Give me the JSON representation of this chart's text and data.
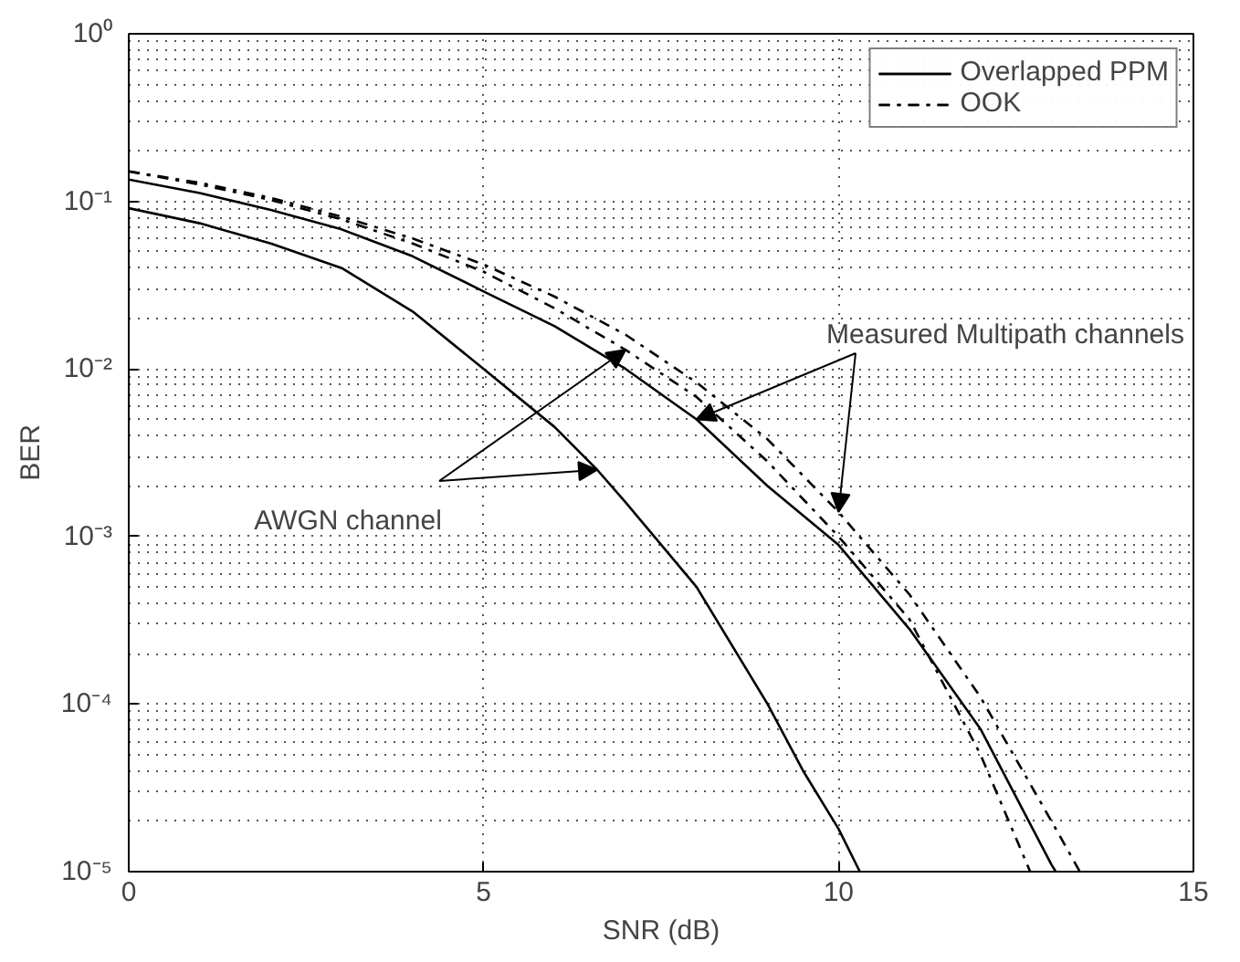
{
  "chart_data": {
    "type": "line",
    "xlabel": "SNR (dB)",
    "ylabel": "BER",
    "log": "y",
    "xlim": [
      0,
      15
    ],
    "xticks": [
      0,
      5,
      10,
      15
    ],
    "ylim": [
      1e-05,
      1
    ],
    "yticks": [
      {
        "value": 1e-05,
        "label": "10⁻⁵"
      },
      {
        "value": 0.0001,
        "label": "10⁻⁴"
      },
      {
        "value": 0.001,
        "label": "10⁻³"
      },
      {
        "value": 0.01,
        "label": "10⁻²"
      },
      {
        "value": 0.1,
        "label": "10⁻¹"
      },
      {
        "value": 1,
        "label": "10⁰"
      }
    ],
    "grid": true,
    "legend": "top right",
    "series": [
      {
        "name": "Overlapped PPM",
        "color": "#000000",
        "line_style": "solid",
        "x": [
          0,
          1,
          2,
          3,
          4,
          5,
          6,
          7,
          8,
          9,
          10,
          11,
          12,
          13,
          13.06
        ],
        "values": [
          0.135,
          0.112,
          0.089,
          0.068,
          0.047,
          0.029,
          0.018,
          0.01,
          0.005,
          0.002,
          0.00089,
          0.00028,
          7.1e-05,
          1.1e-05,
          1e-05
        ]
      },
      {
        "name": "OOK",
        "color": "#000000",
        "line_style": "dashdot",
        "x": [
          0,
          1,
          2,
          3,
          4,
          5,
          6,
          7,
          8,
          9,
          10,
          11,
          12,
          12.7
        ],
        "values": [
          0.151,
          0.126,
          0.102,
          0.078,
          0.056,
          0.038,
          0.023,
          0.013,
          0.0068,
          0.0028,
          0.001,
          0.00032,
          5e-05,
          1e-05
        ]
      },
      {
        "color": "#000000",
        "line_style": "solid",
        "x": [
          0,
          1,
          2,
          3,
          4,
          5,
          6,
          6.6,
          7,
          8,
          9,
          9.5,
          10,
          10.3
        ],
        "values": [
          0.091,
          0.074,
          0.056,
          0.04,
          0.022,
          0.01,
          0.0045,
          0.0025,
          0.0016,
          0.0005,
          0.0001,
          4e-05,
          1.8e-05,
          1e-05
        ]
      },
      {
        "color": "#000000",
        "line_style": "dashdot",
        "x": [
          0,
          1,
          2,
          3,
          4,
          5,
          6,
          7,
          8,
          9,
          10,
          11,
          12,
          13,
          13.4
        ],
        "values": [
          0.151,
          0.129,
          0.105,
          0.081,
          0.06,
          0.042,
          0.027,
          0.016,
          0.0083,
          0.0038,
          0.0014,
          0.00045,
          0.00011,
          2e-05,
          1e-05
        ]
      }
    ],
    "annotations": [
      {
        "text": "AWGN channel",
        "x": 6.6,
        "y": 0.0025
      },
      {
        "text": "Measured Multipath channels",
        "x": 8,
        "y": 0.005
      }
    ]
  }
}
